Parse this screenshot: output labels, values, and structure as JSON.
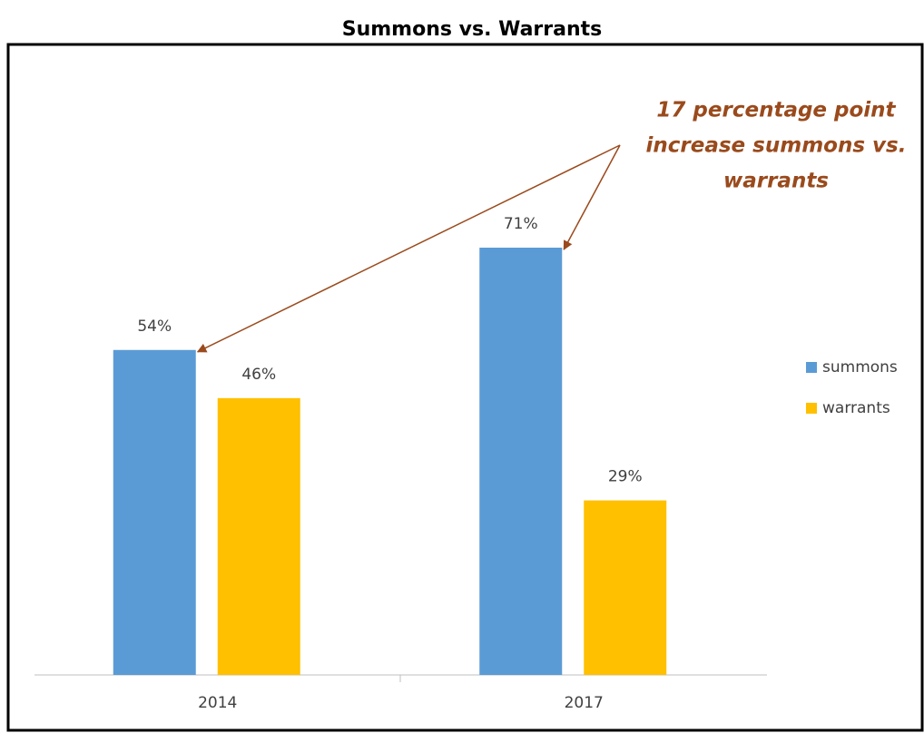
{
  "chart_data": {
    "type": "bar",
    "title": "Summons vs. Warrants",
    "categories": [
      "2014",
      "2017"
    ],
    "series": [
      {
        "name": "summons",
        "color": "#5b9bd5",
        "values": [
          54,
          71
        ],
        "value_labels": [
          "54%",
          "71%"
        ]
      },
      {
        "name": "warrants",
        "color": "#ffc000",
        "values": [
          46,
          29
        ],
        "value_labels": [
          "46%",
          "29%"
        ]
      }
    ],
    "annotation": [
      "17 percentage point",
      "increase summons vs.",
      "warrants"
    ],
    "annotation_color": "#9a4a1c",
    "legend": "right"
  }
}
